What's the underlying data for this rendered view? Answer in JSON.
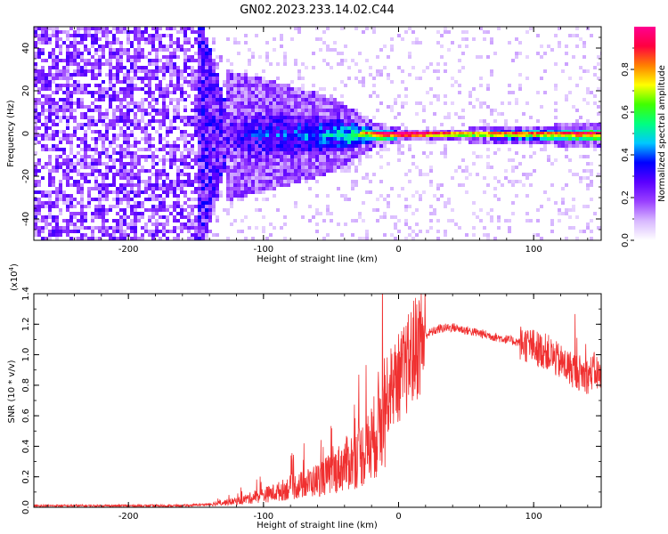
{
  "title": "GN02.2023.233.14.02.C44",
  "chart_data": [
    {
      "type": "heatmap",
      "title": "GN02.2023.233.14.02.C44",
      "xlabel": "Height of straight line (km)",
      "ylabel": "Frequency (Hz)",
      "xlim": [
        -270,
        150
      ],
      "ylim": [
        -50,
        50
      ],
      "xticks": [
        -200,
        -100,
        0,
        100
      ],
      "yticks": [
        -40,
        -20,
        0,
        20,
        40
      ],
      "colorbar": {
        "label": "Normalized spectral amplitude",
        "ticks": [
          0.0,
          0.2,
          0.4,
          0.6,
          0.8
        ],
        "range": [
          0,
          1
        ],
        "colormap": [
          "#ffffff",
          "#d8b8ff",
          "#9a40ff",
          "#5a00ff",
          "#0000ff",
          "#00c8ff",
          "#00ff80",
          "#40ff00",
          "#ffff00",
          "#ff8000",
          "#ff0040",
          "#ff0090"
        ]
      },
      "description_points": [
        {
          "x": -270,
          "spread_hz": 50,
          "amp": 0.1
        },
        {
          "x": -150,
          "spread_hz": 50,
          "amp": 0.1
        },
        {
          "x": -130,
          "spread_hz": 14,
          "amp": 0.25
        },
        {
          "x": -100,
          "spread_hz": 12,
          "amp": 0.35
        },
        {
          "x": -50,
          "spread_hz": 8,
          "amp": 0.45
        },
        {
          "x": -20,
          "spread_hz": 3,
          "amp": 0.7
        },
        {
          "x": 0,
          "spread_hz": 1.5,
          "amp": 0.9
        },
        {
          "x": 50,
          "spread_hz": 1.5,
          "amp": 0.6
        },
        {
          "x": 100,
          "spread_hz": 2,
          "amp": 0.7
        },
        {
          "x": 150,
          "spread_hz": 3,
          "amp": 0.8
        }
      ]
    },
    {
      "type": "line",
      "xlabel": "Height of straight line (km)",
      "ylabel": "SNR (10 * v/v)",
      "yscale_label": "(x10",
      "yscale_exp": "4",
      "yscale_close": ")",
      "xlim": [
        -270,
        150
      ],
      "ylim": [
        0,
        1.4
      ],
      "xticks": [
        -200,
        -100,
        0,
        100
      ],
      "yticks": [
        0.0,
        0.2,
        0.4,
        0.6,
        0.8,
        1.0,
        1.2,
        1.4
      ],
      "color": "#f03030",
      "series": [
        {
          "x": [
            -270,
            -240,
            -200,
            -160,
            -140,
            -120,
            -110,
            -100,
            -90,
            -80,
            -70,
            -60,
            -50,
            -40,
            -30,
            -20,
            -15,
            -10,
            -5,
            0,
            5,
            10,
            15,
            20,
            25,
            30,
            40,
            50,
            60,
            70,
            80,
            90,
            100,
            105,
            110,
            115,
            120,
            125,
            130,
            135,
            140,
            145,
            150
          ],
          "values": [
            0.01,
            0.01,
            0.01,
            0.01,
            0.02,
            0.04,
            0.06,
            0.08,
            0.1,
            0.13,
            0.15,
            0.18,
            0.22,
            0.28,
            0.33,
            0.4,
            0.55,
            0.7,
            0.8,
            0.85,
            0.9,
            1.0,
            1.08,
            1.13,
            1.15,
            1.17,
            1.18,
            1.16,
            1.14,
            1.12,
            1.1,
            1.08,
            1.05,
            1.03,
            1.02,
            0.98,
            0.95,
            0.92,
            0.9,
            0.88,
            0.86,
            0.9,
            0.85
          ]
        }
      ]
    }
  ]
}
